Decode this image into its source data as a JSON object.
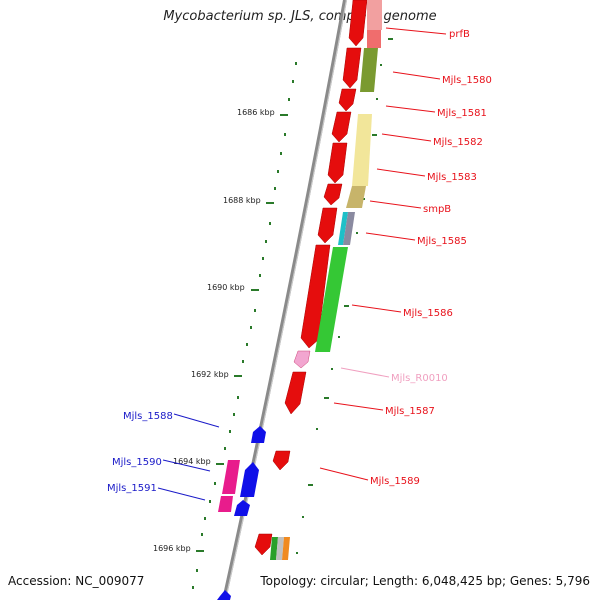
{
  "title": "Mycobacterium sp. JLS, complete genome",
  "footer": {
    "accession": "Accession: NC_009077",
    "summary": "Topology: circular; Length: 6,048,425 bp; Genes: 5,796"
  },
  "colors": {
    "strand_plus_label": "#e8121b",
    "strand_minus_label": "#1a1ac8",
    "rna_label": "#f0a0c0",
    "backbone": "#8a8a8a",
    "tick": "#2a7a2a"
  },
  "kbp_markers": [
    "1686 kbp",
    "1688 kbp",
    "1690 kbp",
    "1692 kbp",
    "1694 kbp",
    "1696 kbp"
  ],
  "genes_right": [
    "prfB",
    "Mjls_1580",
    "Mjls_1581",
    "Mjls_1582",
    "Mjls_1583",
    "smpB",
    "Mjls_1585",
    "Mjls_1586",
    "Mjls_R0010",
    "Mjls_1587",
    "Mjls_1589"
  ],
  "genes_left": [
    "Mjls_1588",
    "Mjls_1590",
    "Mjls_1591"
  ]
}
